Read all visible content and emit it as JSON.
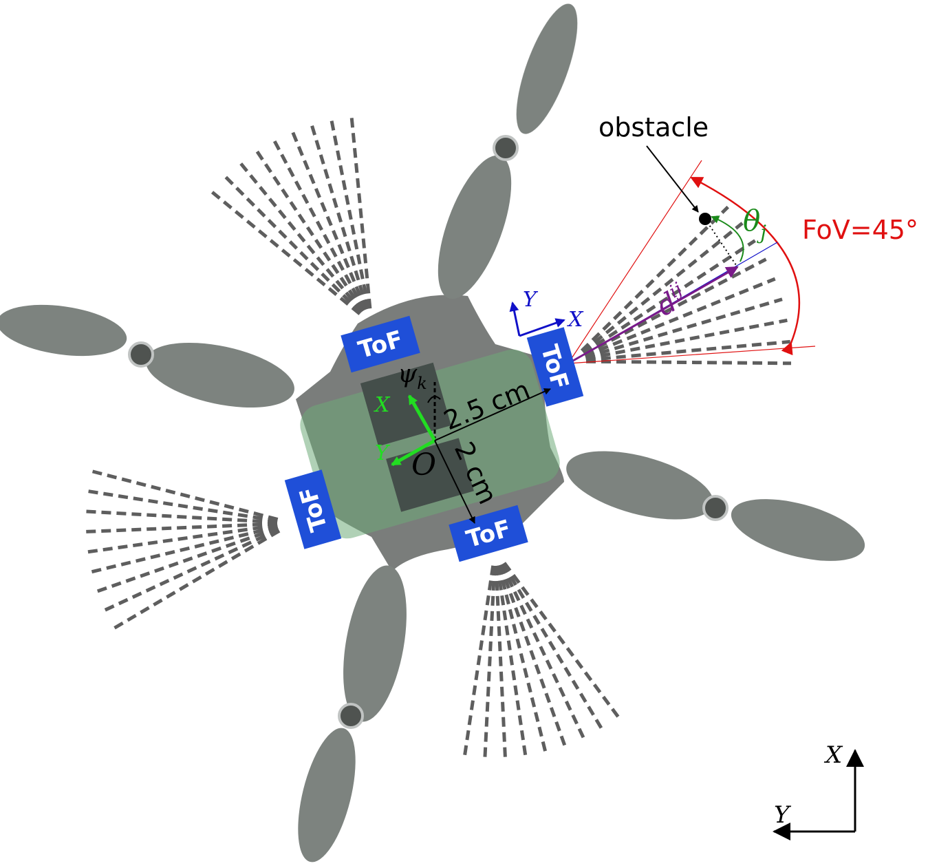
{
  "labels": {
    "obstacle": "obstacle",
    "fov": "FoV=45°",
    "theta_main": "θ",
    "theta_sub": "j",
    "d_main": "d",
    "d_sup": "ij",
    "psi_main": "ψ",
    "psi_sub": "k",
    "origin": "O",
    "dist_x": "2.5 cm",
    "dist_y": "2 cm",
    "tof": "ToF",
    "body_x": "X",
    "body_y": "Y",
    "sensor_x": "X",
    "sensor_y": "Y",
    "world_x": "X",
    "world_y": "Y"
  },
  "colors": {
    "tof_box": "#1f4fd8",
    "fov": "#e01010",
    "theta": "#1a8a1a",
    "distance_vector": "#7a1a8a",
    "sensor_frame": "#1010c8",
    "body_frame": "#22dd22",
    "world_frame": "#000000",
    "board": "#5fa06a",
    "propeller": "#6f7571"
  },
  "icons": {
    "obstacle": "black-dot",
    "sensor_beam": "dashed-fan"
  }
}
